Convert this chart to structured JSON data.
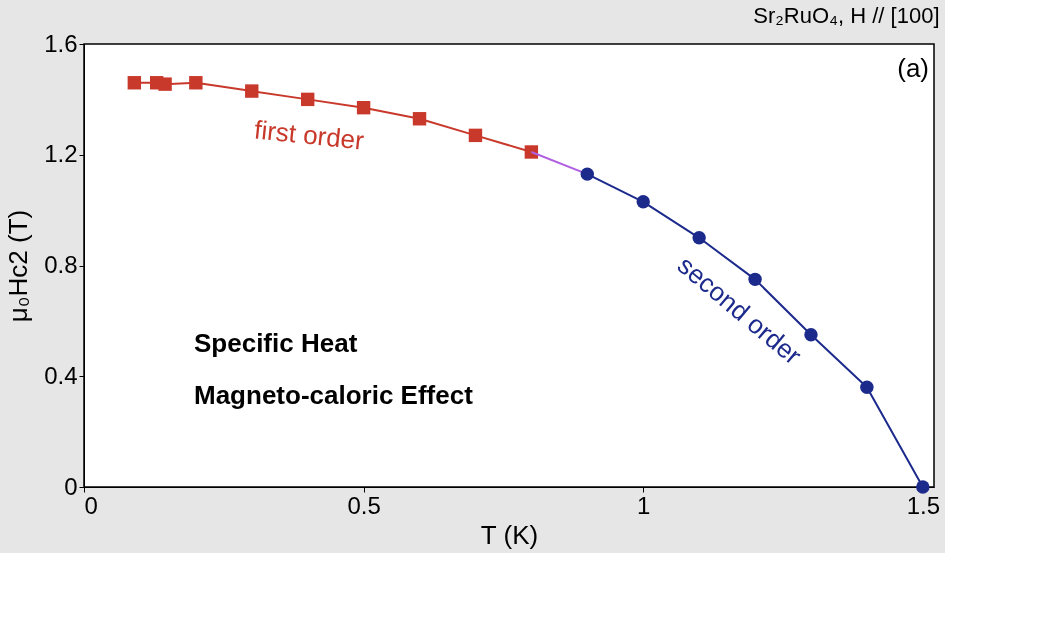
{
  "chart_data": {
    "type": "line",
    "title": "Sr₂RuO₄, H // [100]",
    "xlabel": "T (K)",
    "ylabel": "μ₀Hc2 (T)",
    "xlim": [
      0,
      1.52
    ],
    "xticks": [
      0,
      0.5,
      1,
      1.5
    ],
    "ylim": [
      0,
      1.6
    ],
    "yticks": [
      0,
      0.4,
      0.8,
      1.2,
      1.6
    ],
    "grid": false,
    "series": [
      {
        "marker": "square",
        "color": "#c8392b",
        "x": [
          0.09,
          0.13,
          0.145,
          0.2,
          0.3,
          0.4,
          0.5,
          0.6,
          0.7,
          0.8
        ],
        "values": [
          1.46,
          1.46,
          1.455,
          1.46,
          1.43,
          1.4,
          1.37,
          1.33,
          1.27,
          1.21
        ]
      },
      {
        "marker": "none",
        "color": "#b060e0",
        "x": [
          0.8,
          0.9
        ],
        "values": [
          1.21,
          1.13
        ]
      },
      {
        "marker": "circle",
        "color": "#1c2a8c",
        "x": [
          0.9,
          1.0,
          1.1,
          1.2,
          1.3,
          1.4,
          1.5
        ],
        "values": [
          1.13,
          1.03,
          0.9,
          0.75,
          0.55,
          0.36,
          0
        ]
      }
    ],
    "annotations": [
      "(a)",
      "Specific Heat",
      "Magneto-caloric Effect",
      "first order",
      "second order"
    ]
  }
}
